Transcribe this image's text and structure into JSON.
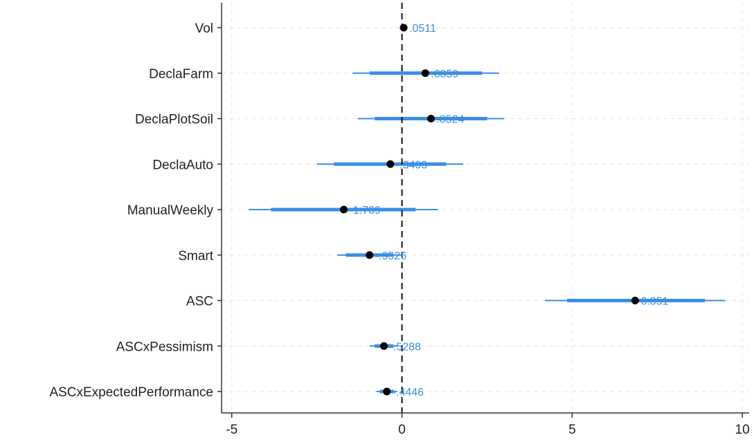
{
  "chart_data": {
    "type": "coefficient-plot",
    "title": "",
    "xlabel": "",
    "ylabel": "",
    "xlim": [
      -5.3,
      10.2
    ],
    "xticks": [
      "-5",
      "0",
      "5",
      "10"
    ],
    "xtick_values": [
      -5,
      0,
      5,
      10
    ],
    "reference_line": {
      "x": 0,
      "style": "dashed"
    },
    "grid": true,
    "colors": {
      "interval": "#3a8ee6",
      "point": "#000000",
      "label": "#3a8ee6",
      "axis": "#333333",
      "grid": "#e6e6e6"
    },
    "series": [
      {
        "category": "Vol",
        "estimate": 0.0511,
        "label": ".0511",
        "inner": [
          0.03,
          0.07
        ],
        "outer": [
          0.01,
          0.09
        ]
      },
      {
        "category": "DeclaFarm",
        "estimate": 0.6859,
        "label": ".6859",
        "inner": [
          -0.95,
          2.35
        ],
        "outer": [
          -1.45,
          2.85
        ]
      },
      {
        "category": "DeclaPlotSoil",
        "estimate": 0.8524,
        "label": ".8524",
        "inner": [
          -0.8,
          2.5
        ],
        "outer": [
          -1.3,
          3.0
        ]
      },
      {
        "category": "DeclaAuto",
        "estimate": -0.3403,
        "label": "-.3403",
        "inner": [
          -2.0,
          1.3
        ],
        "outer": [
          -2.5,
          1.8
        ]
      },
      {
        "category": "ManualWeekly",
        "estimate": -1.709,
        "label": "-1.709",
        "inner": [
          -3.85,
          0.4
        ],
        "outer": [
          -4.5,
          1.05
        ]
      },
      {
        "category": "Smart",
        "estimate": -0.9526,
        "label": "-.9526",
        "inner": [
          -1.65,
          -0.25
        ],
        "outer": [
          -1.9,
          0.0
        ]
      },
      {
        "category": "ASC",
        "estimate": 6.851,
        "label": "6.851",
        "inner": [
          4.85,
          8.9
        ],
        "outer": [
          4.2,
          9.5
        ]
      },
      {
        "category": "ASCxPessimism",
        "estimate": -0.5288,
        "label": "-.5288",
        "inner": [
          -0.8,
          -0.25
        ],
        "outer": [
          -0.95,
          -0.1
        ]
      },
      {
        "category": "ASCxExpectedPerformance",
        "estimate": -0.4446,
        "label": "-.4446",
        "inner": [
          -0.65,
          -0.24
        ],
        "outer": [
          -0.75,
          -0.14
        ]
      }
    ]
  }
}
